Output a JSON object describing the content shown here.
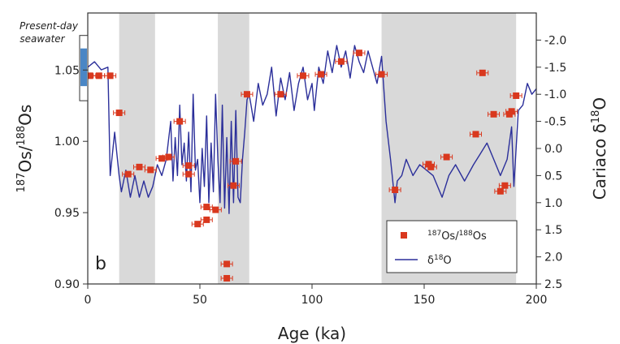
{
  "chart_data": {
    "type": "scatter",
    "panel_label": "b",
    "annotation": {
      "text_line1": "Present-day",
      "text_line2": "seawater",
      "range_y": [
        1.041,
        1.064
      ]
    },
    "xlabel": "Age (ka)",
    "ylabel_left": {
      "sup1": "187",
      "base1": "Os/",
      "sup2": "188",
      "base2": "Os"
    },
    "ylabel_right": {
      "base": "Cariaco δ",
      "sup": "18",
      "tail": "O"
    },
    "xlim": [
      0,
      200
    ],
    "ylim_left": [
      0.9,
      1.09
    ],
    "ylim_right": [
      2.5,
      -2.5
    ],
    "x_ticks": [
      "0",
      "50",
      "100",
      "150",
      "200"
    ],
    "y_left_ticks": [
      "0.90",
      "0.95",
      "1.00",
      "1.05"
    ],
    "y_right_ticks": [
      "-2.0",
      "-1.5",
      "-1.0",
      "-0.5",
      "0.0",
      "0.5",
      "1.0",
      "1.5",
      "2.0",
      "2.5"
    ],
    "shaded_intervals": [
      [
        14,
        30
      ],
      [
        58,
        72
      ],
      [
        131,
        191
      ]
    ],
    "legend": {
      "os_label": {
        "sup1": "187",
        "mid": "Os/",
        "sup2": "188",
        "tail": "Os"
      },
      "d18o_label": {
        "base": "δ",
        "sup": "18",
        "tail": "O"
      }
    },
    "colors": {
      "os": "#d9381e",
      "d18o": "#2b2f9a",
      "shade": "#d9d9d9",
      "seawater": "#4a86c5"
    },
    "series": [
      {
        "kind": "os_points",
        "x": [
          1,
          5,
          10,
          14,
          18,
          23,
          28,
          33,
          36,
          41,
          45,
          45,
          49,
          53,
          53,
          57,
          62,
          62,
          65,
          66,
          71,
          86,
          96,
          104,
          113,
          121,
          131,
          137,
          152,
          153,
          160,
          173,
          176,
          181,
          184,
          186,
          188,
          189,
          191
        ],
        "y": [
          1.046,
          1.046,
          1.046,
          1.02,
          0.977,
          0.982,
          0.98,
          0.988,
          0.989,
          1.014,
          0.983,
          0.977,
          0.942,
          0.945,
          0.954,
          0.952,
          0.914,
          0.904,
          0.969,
          0.986,
          1.033,
          1.033,
          1.046,
          1.047,
          1.056,
          1.062,
          1.047,
          0.966,
          0.984,
          0.982,
          0.989,
          1.005,
          1.048,
          1.019,
          0.965,
          0.969,
          1.019,
          1.021,
          1.032
        ]
      },
      {
        "kind": "d18o_line",
        "x": [
          0,
          3,
          6,
          9,
          10,
          12,
          14,
          15,
          17,
          19,
          21,
          23,
          25,
          27,
          29,
          31,
          33,
          35,
          37,
          38,
          39,
          40,
          41,
          42,
          43,
          44,
          45,
          46,
          47,
          48,
          49,
          50,
          51,
          52,
          53,
          54,
          55,
          56,
          57,
          58,
          59,
          60,
          61,
          62,
          63,
          64,
          65,
          66,
          67,
          68,
          69,
          70,
          71,
          72,
          74,
          76,
          78,
          80,
          82,
          84,
          86,
          88,
          90,
          92,
          94,
          96,
          98,
          100,
          101,
          103,
          105,
          107,
          109,
          111,
          113,
          115,
          117,
          119,
          121,
          123,
          125,
          127,
          129,
          131,
          133,
          135,
          137,
          138,
          140,
          142,
          145,
          148,
          151,
          154,
          158,
          161,
          164,
          168,
          172,
          175,
          178,
          181,
          184,
          187,
          189,
          190,
          192,
          194,
          196,
          198,
          200
        ],
        "y": [
          -1.5,
          -1.6,
          -1.45,
          -1.5,
          0.5,
          -0.3,
          0.5,
          0.8,
          0.4,
          0.9,
          0.5,
          0.9,
          0.6,
          0.9,
          0.7,
          0.3,
          0.5,
          0.2,
          -0.5,
          0.6,
          -0.2,
          0.5,
          -0.8,
          0.3,
          -0.1,
          0.6,
          -0.3,
          0.8,
          -1.0,
          0.4,
          0.2,
          1.0,
          0.0,
          0.7,
          -0.6,
          1.0,
          -0.1,
          0.8,
          -1.0,
          0.2,
          1.0,
          -0.8,
          1.1,
          -0.2,
          1.2,
          -0.5,
          1.0,
          -0.7,
          0.9,
          1.0,
          0.2,
          -0.3,
          -0.9,
          -1.0,
          -0.5,
          -1.2,
          -0.8,
          -1.0,
          -1.5,
          -0.6,
          -1.3,
          -0.9,
          -1.4,
          -0.7,
          -1.2,
          -1.5,
          -0.9,
          -1.2,
          -0.7,
          -1.5,
          -1.2,
          -1.8,
          -1.4,
          -1.9,
          -1.5,
          -1.8,
          -1.3,
          -1.9,
          -1.6,
          -1.4,
          -1.8,
          -1.5,
          -1.2,
          -1.7,
          -0.5,
          0.2,
          1.0,
          0.6,
          0.5,
          0.2,
          0.5,
          0.3,
          0.4,
          0.5,
          0.9,
          0.5,
          0.3,
          0.6,
          0.3,
          0.1,
          -0.1,
          0.2,
          0.5,
          0.2,
          -0.4,
          0.7,
          -0.7,
          -0.8,
          -1.2,
          -1.0,
          -1.1
        ]
      }
    ]
  }
}
